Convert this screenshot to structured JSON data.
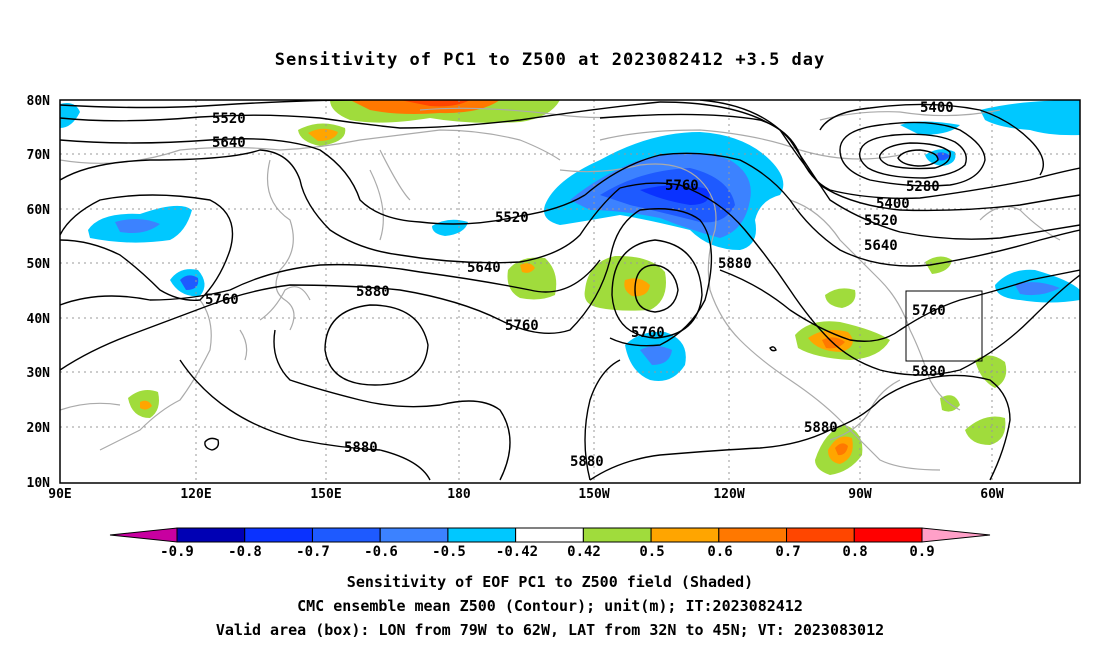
{
  "title": "Sensitivity of PC1 to Z500 at 2023082412 +3.5 day",
  "lat_labels": [
    "80N",
    "70N",
    "60N",
    "50N",
    "40N",
    "30N",
    "20N",
    "10N"
  ],
  "lon_labels": [
    "90E",
    "120E",
    "150E",
    "180",
    "150W",
    "120W",
    "90W",
    "60W"
  ],
  "contour_labels": [
    {
      "text": "5520",
      "id": "c1"
    },
    {
      "text": "5640",
      "id": "c2"
    },
    {
      "text": "5760",
      "id": "c3"
    },
    {
      "text": "5880",
      "id": "c4"
    },
    {
      "text": "5880",
      "id": "c5"
    },
    {
      "text": "5520",
      "id": "c6"
    },
    {
      "text": "5640",
      "id": "c7"
    },
    {
      "text": "5760",
      "id": "c8"
    },
    {
      "text": "5760",
      "id": "c9"
    },
    {
      "text": "5880",
      "id": "c10"
    },
    {
      "text": "5760",
      "id": "c11"
    },
    {
      "text": "5400",
      "id": "c12"
    },
    {
      "text": "5280",
      "id": "c13"
    },
    {
      "text": "5400",
      "id": "c14"
    },
    {
      "text": "5520",
      "id": "c15"
    },
    {
      "text": "5640",
      "id": "c16"
    },
    {
      "text": "5760",
      "id": "c17"
    },
    {
      "text": "5880",
      "id": "c18"
    },
    {
      "text": "5880",
      "id": "c19"
    },
    {
      "text": "5880",
      "id": "c20"
    }
  ],
  "colorbar": {
    "labels": [
      "-0.9",
      "-0.8",
      "-0.7",
      "-0.6",
      "-0.5",
      "-0.42",
      "0.42",
      "0.5",
      "0.6",
      "0.7",
      "0.8",
      "0.9"
    ],
    "colors": [
      "#0000b4",
      "#0a32ff",
      "#1e5aff",
      "#3c82ff",
      "#00c8ff",
      "#ffffff",
      "#a0dc3c",
      "#ffa500",
      "#ff7800",
      "#ff4600",
      "#ff0000"
    ],
    "under_color": "#c800a0",
    "over_color": "#ffa0c8"
  },
  "captions": {
    "line1": "Sensitivity of EOF PC1 to Z500 field (Shaded)",
    "line2": "CMC ensemble mean Z500 (Contour); unit(m); IT:2023082412",
    "line3": "Valid area (box): LON from 79W to 62W, LAT from 32N to 45N; VT: 2023083012"
  }
}
